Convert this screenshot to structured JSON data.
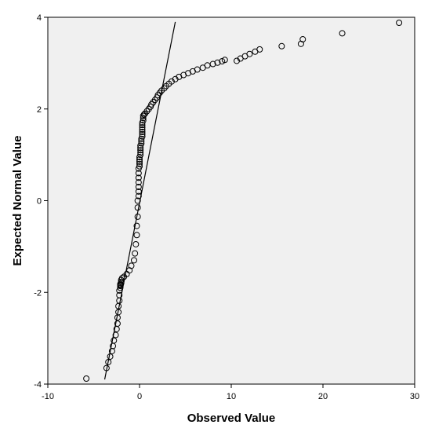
{
  "chart_data": {
    "type": "scatter",
    "title": "",
    "xlabel": "Observed Value",
    "ylabel": "Expected Normal Value",
    "xlim": [
      -10,
      30
    ],
    "ylim": [
      -4,
      4
    ],
    "x_ticks": [
      -10,
      0,
      10,
      20,
      30
    ],
    "y_ticks": [
      -4,
      -2,
      0,
      2,
      4
    ],
    "grid": false,
    "colors": {
      "plot_background": "#f0f0f0",
      "marker_stroke": "#000000",
      "reference_line": "#000000"
    },
    "reference_line": {
      "x": [
        -3.8,
        3.9
      ],
      "y": [
        -3.9,
        3.9
      ]
    },
    "points": {
      "x": [
        -5.8,
        -3.6,
        -3.4,
        -3.2,
        -3.0,
        -2.9,
        -2.8,
        -2.6,
        -2.5,
        -2.4,
        -2.4,
        -2.3,
        -2.3,
        -2.2,
        -2.2,
        -2.2,
        -2.1,
        -2.1,
        -2.1,
        -2.1,
        -2.0,
        -2.0,
        -2.0,
        -1.9,
        -1.7,
        -1.4,
        -1.1,
        -0.9,
        -0.6,
        -0.5,
        -0.4,
        -0.3,
        -0.3,
        -0.2,
        -0.2,
        -0.2,
        -0.1,
        -0.1,
        -0.1,
        -0.1,
        -0.1,
        -0.1,
        -0.1,
        0.0,
        0.0,
        0.0,
        0.0,
        0.0,
        0.1,
        0.1,
        0.1,
        0.1,
        0.1,
        0.2,
        0.2,
        0.2,
        0.3,
        0.3,
        0.3,
        0.3,
        0.3,
        0.3,
        0.3,
        0.4,
        0.4,
        0.4,
        0.5,
        0.6,
        0.8,
        1.0,
        1.2,
        1.3,
        1.5,
        1.7,
        1.9,
        2.0,
        2.2,
        2.4,
        2.7,
        2.9,
        3.2,
        3.5,
        3.9,
        4.3,
        4.8,
        5.3,
        5.8,
        6.3,
        6.9,
        7.4,
        8.0,
        8.5,
        9.0,
        9.3,
        10.6,
        11.0,
        11.5,
        12.0,
        12.6,
        13.1,
        15.5,
        17.6,
        17.8,
        22.1,
        28.3
      ],
      "y": [
        -3.88,
        -3.65,
        -3.52,
        -3.4,
        -3.28,
        -3.17,
        -3.05,
        -2.93,
        -2.8,
        -2.68,
        -2.55,
        -2.43,
        -2.3,
        -2.18,
        -2.06,
        -1.96,
        -1.9,
        -1.86,
        -1.84,
        -1.82,
        -1.8,
        -1.77,
        -1.73,
        -1.69,
        -1.66,
        -1.6,
        -1.52,
        -1.42,
        -1.3,
        -1.15,
        -0.95,
        -0.75,
        -0.55,
        -0.35,
        -0.15,
        0.0,
        0.1,
        0.2,
        0.3,
        0.4,
        0.5,
        0.6,
        0.7,
        0.75,
        0.8,
        0.85,
        0.9,
        0.95,
        1.0,
        1.05,
        1.1,
        1.15,
        1.2,
        1.25,
        1.3,
        1.35,
        1.4,
        1.45,
        1.5,
        1.55,
        1.6,
        1.65,
        1.7,
        1.75,
        1.8,
        1.85,
        1.88,
        1.9,
        1.95,
        2.0,
        2.05,
        2.1,
        2.15,
        2.2,
        2.25,
        2.3,
        2.35,
        2.4,
        2.45,
        2.5,
        2.55,
        2.6,
        2.65,
        2.7,
        2.74,
        2.78,
        2.82,
        2.86,
        2.9,
        2.95,
        2.98,
        3.01,
        3.04,
        3.07,
        3.05,
        3.1,
        3.15,
        3.2,
        3.25,
        3.3,
        3.37,
        3.42,
        3.52,
        3.65,
        3.88
      ]
    }
  }
}
